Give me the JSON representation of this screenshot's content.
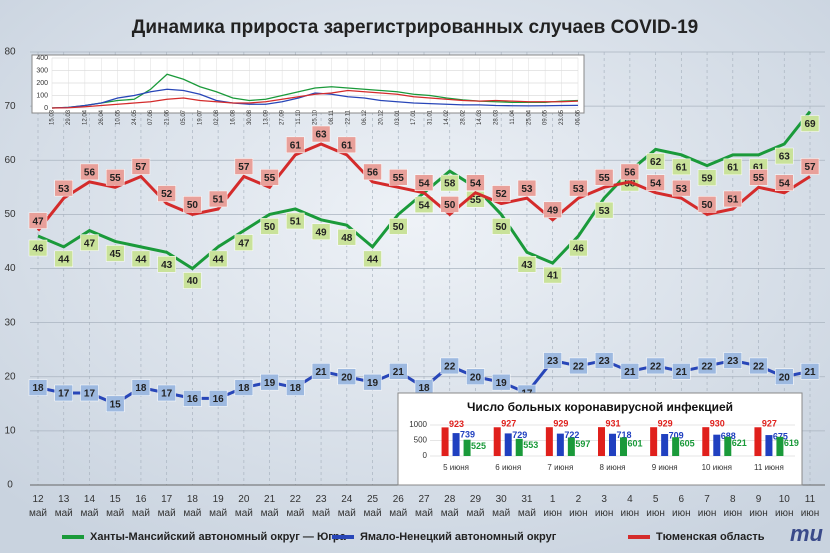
{
  "chart_data": [
    {
      "type": "line",
      "title": "Динамика прироста зарегистрированных случаев COVID-19",
      "categories": [
        "12 май",
        "13 май",
        "14 май",
        "15 май",
        "16 май",
        "17 май",
        "18 май",
        "19 май",
        "20 май",
        "21 май",
        "22 май",
        "23 май",
        "24 май",
        "25 май",
        "26 май",
        "27 май",
        "28 май",
        "29 май",
        "30 май",
        "31 май",
        "1 июн",
        "2 июн",
        "3 июн",
        "4 июн",
        "5 июн",
        "6 июн",
        "7 июн",
        "8 июн",
        "9 июн",
        "10 июн",
        "11 июн"
      ],
      "series": [
        {
          "name": "Ханты-Мансийский автономный округ — Югра",
          "color": "#1a9a3a",
          "label_color": "#c9e29a",
          "values": [
            46,
            44,
            47,
            45,
            44,
            43,
            40,
            44,
            47,
            50,
            51,
            49,
            48,
            44,
            50,
            54,
            58,
            55,
            50,
            43,
            41,
            46,
            53,
            58,
            62,
            61,
            59,
            61,
            61,
            63,
            69
          ]
        },
        {
          "name": "Ямало-Ненецкий автономный округ",
          "color": "#2846b8",
          "label_color": "#9db9e0",
          "values": [
            18,
            17,
            17,
            15,
            18,
            17,
            16,
            16,
            18,
            19,
            18,
            21,
            20,
            19,
            21,
            18,
            22,
            20,
            19,
            17,
            23,
            22,
            23,
            21,
            22,
            21,
            22,
            23,
            22,
            20,
            21
          ]
        },
        {
          "name": "Тюменская область",
          "color": "#d42b2b",
          "label_color": "#e8a09a",
          "values": [
            47,
            53,
            56,
            55,
            57,
            52,
            50,
            51,
            57,
            55,
            61,
            63,
            61,
            56,
            55,
            54,
            50,
            54,
            52,
            53,
            49,
            53,
            55,
            56,
            54,
            53,
            50,
            51,
            55,
            54,
            57
          ]
        }
      ],
      "ylim": [
        0,
        80
      ],
      "yticks": [
        0,
        10,
        20,
        30,
        40,
        50,
        60,
        70,
        80
      ],
      "grid": true,
      "logo": "mu"
    },
    {
      "type": "line",
      "categories": [
        "15.03",
        "29.03",
        "12.04",
        "26.04",
        "10.05",
        "24.05",
        "07.06",
        "21.06",
        "05.07",
        "19.07",
        "02.08",
        "16.08",
        "30.08",
        "13.09",
        "27.09",
        "11.10",
        "25.10",
        "08.11",
        "22.11",
        "06.12",
        "20.12",
        "03.01",
        "17.01",
        "31.01",
        "14.02",
        "28.02",
        "14.03",
        "28.03",
        "11.04",
        "25.04",
        "09.05",
        "23.05",
        "06.06"
      ],
      "series": [
        {
          "color": "#1a9a3a",
          "values": [
            0,
            5,
            20,
            40,
            60,
            70,
            150,
            270,
            230,
            170,
            130,
            80,
            60,
            70,
            100,
            130,
            160,
            170,
            160,
            150,
            140,
            130,
            110,
            100,
            80,
            65,
            55,
            50,
            45,
            45,
            45,
            55,
            60
          ]
        },
        {
          "color": "#2846b8",
          "values": [
            0,
            5,
            20,
            40,
            80,
            100,
            130,
            150,
            140,
            110,
            60,
            40,
            30,
            30,
            50,
            80,
            120,
            110,
            90,
            80,
            60,
            50,
            40,
            35,
            30,
            25,
            25,
            20,
            18,
            17,
            18,
            20,
            21
          ]
        },
        {
          "color": "#d42b2b",
          "values": [
            0,
            2,
            10,
            20,
            30,
            40,
            50,
            70,
            80,
            60,
            50,
            40,
            40,
            50,
            70,
            90,
            110,
            120,
            140,
            130,
            120,
            110,
            90,
            80,
            70,
            60,
            55,
            60,
            55,
            50,
            50,
            50,
            55
          ]
        }
      ],
      "ylim": [
        0,
        400
      ],
      "yticks": [
        0,
        100,
        200,
        300,
        400
      ],
      "grid": true
    },
    {
      "type": "bar",
      "title": "Число больных  коронавирусной  инфекцией",
      "categories": [
        "5 июня",
        "6 июня",
        "7 июня",
        "8 июня",
        "9 июня",
        "10 июня",
        "11 июня"
      ],
      "series": [
        {
          "color": "#e0201c",
          "values": [
            923,
            927,
            929,
            931,
            929,
            930,
            927
          ]
        },
        {
          "color": "#2040c0",
          "values": [
            739,
            729,
            722,
            718,
            709,
            688,
            675
          ]
        },
        {
          "color": "#1a9a3a",
          "values": [
            525,
            553,
            597,
            601,
            605,
            621,
            619
          ]
        }
      ],
      "ylim": [
        0,
        1000
      ],
      "yticks": [
        0,
        500,
        1000
      ]
    }
  ]
}
